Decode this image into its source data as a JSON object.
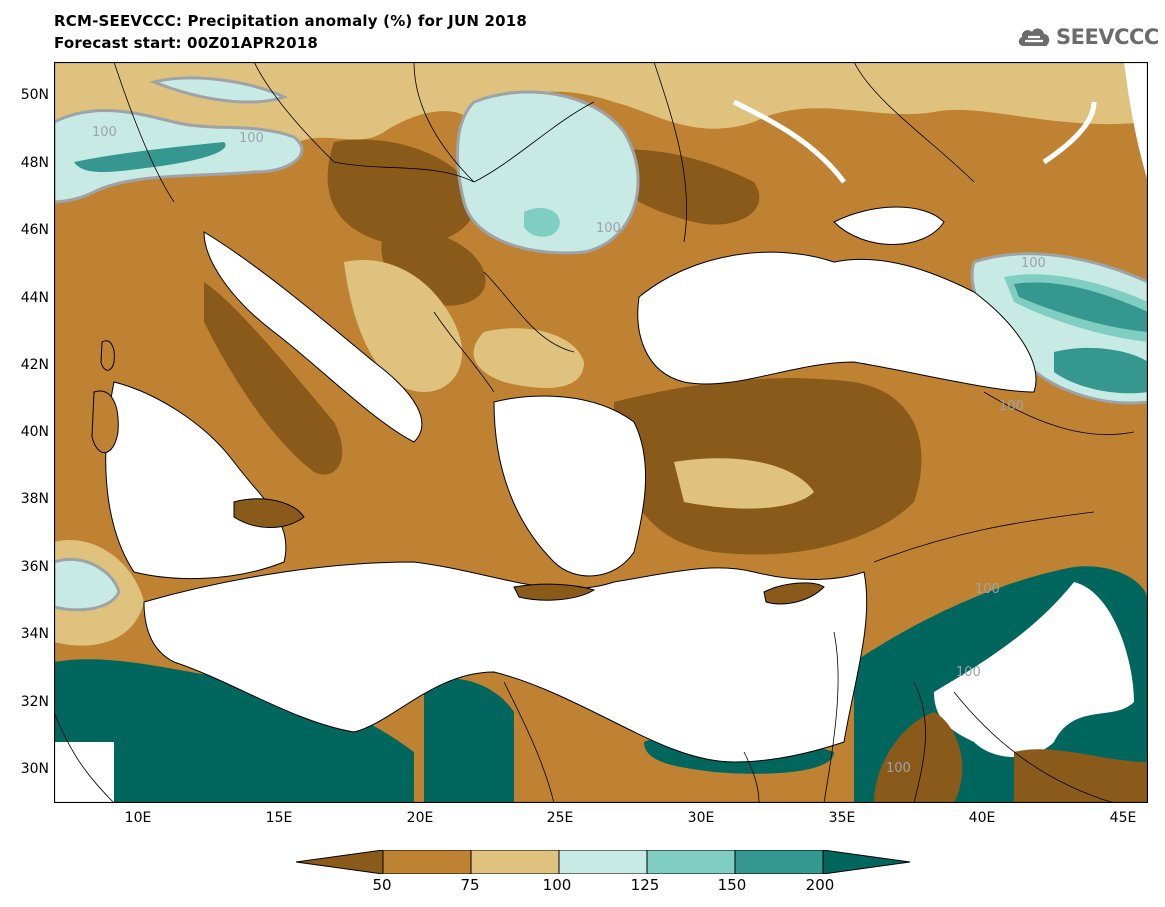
{
  "header": {
    "title": "RCM-SEEVCCC: Precipitation anomaly (%) for JUN 2018",
    "subtitle": "Forecast start: 00Z01APR2018",
    "logo_text": "SEEVCCC"
  },
  "axes": {
    "lat_labels": [
      "50N",
      "48N",
      "46N",
      "44N",
      "42N",
      "40N",
      "38N",
      "36N",
      "34N",
      "32N",
      "30N"
    ],
    "lon_labels": [
      "10E",
      "15E",
      "20E",
      "25E",
      "30E",
      "35E",
      "40E",
      "45E"
    ]
  },
  "contour_labels": [
    "100",
    "100",
    "100",
    "100",
    "100",
    "100",
    "100",
    "100"
  ],
  "colorbar": {
    "levels": [
      "50",
      "75",
      "100",
      "125",
      "150",
      "200"
    ],
    "colors": [
      "#8a5a1a",
      "#bf8232",
      "#dfc27d",
      "#c7eae5",
      "#80cdc1",
      "#35978f",
      "#01665e"
    ]
  },
  "legend_colors": {
    "sea": "#ffffff",
    "border": "#000000",
    "contour_100": "#9ea3a8"
  }
}
